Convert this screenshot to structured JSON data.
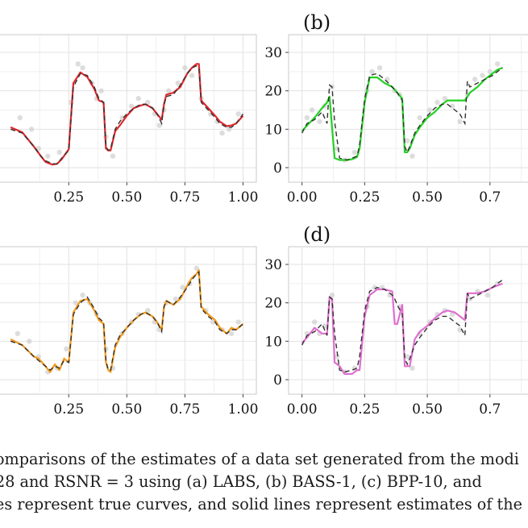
{
  "panels": [
    {
      "label": "",
      "line_color": "#e0282c",
      "x_ticks": [
        "0.25",
        "0.50",
        "0.75",
        "1.00"
      ],
      "y_ticks": []
    },
    {
      "label": "(b)",
      "line_color": "#22d122",
      "x_ticks": [
        "0.00",
        "0.25",
        "0.50",
        "0.7"
      ],
      "y_ticks": [
        "0",
        "10",
        "20",
        "30"
      ]
    },
    {
      "label": "",
      "line_color": "#f39a1c",
      "x_ticks": [
        "0.25",
        "0.50",
        "0.75",
        "1.00"
      ],
      "y_ticks": []
    },
    {
      "label": "(d)",
      "line_color": "#e06fcf",
      "x_ticks": [
        "0.00",
        "0.25",
        "0.50",
        "0.7"
      ],
      "y_ticks": [
        "0",
        "10",
        "20",
        "30"
      ]
    }
  ],
  "caption": {
    "line1": "omparisons of the estimates of a data set generated from the modi",
    "line2": "28 and RSNR = 3 using (a) LABS, (b) BASS-1, (c) BPP-10, and",
    "line3": "es represent true curves, and solid lines represent estimates of the"
  },
  "chart_data": [
    {
      "type": "line",
      "panel": "(a)",
      "xlim": [
        0,
        1
      ],
      "ylim": [
        0,
        30
      ],
      "x": [
        0.0,
        0.05,
        0.1,
        0.13,
        0.15,
        0.18,
        0.2,
        0.22,
        0.25,
        0.27,
        0.3,
        0.33,
        0.36,
        0.38,
        0.4,
        0.41,
        0.42,
        0.43,
        0.45,
        0.47,
        0.5,
        0.53,
        0.56,
        0.58,
        0.61,
        0.63,
        0.65,
        0.66,
        0.67,
        0.7,
        0.73,
        0.76,
        0.78,
        0.8,
        0.81,
        0.82,
        0.85,
        0.88,
        0.9,
        0.93,
        0.95,
        0.97,
        1.0
      ],
      "series": [
        {
          "values": [
            10.5,
            9.2,
            5.5,
            3.0,
            1.5,
            0.8,
            1.0,
            2.2,
            4.8,
            22.0,
            24.8,
            23.6,
            20.5,
            17.5,
            17.0,
            5.0,
            4.5,
            4.5,
            9.5,
            11.0,
            13.5,
            15.5,
            16.2,
            16.5,
            15.5,
            14.0,
            12.5,
            16.5,
            19.0,
            19.5,
            21.0,
            24.5,
            26.0,
            27.0,
            27.0,
            17.5,
            15.5,
            13.5,
            12.0,
            10.8,
            11.0,
            11.5,
            13.5
          ]
        },
        {
          "values": [
            10.0,
            9.0,
            5.5,
            3.0,
            1.8,
            1.0,
            1.0,
            2.5,
            4.5,
            21.0,
            24.5,
            24.0,
            21.0,
            18.0,
            17.0,
            5.5,
            4.5,
            5.0,
            10.0,
            12.0,
            14.0,
            15.5,
            16.5,
            16.5,
            15.5,
            14.0,
            11.5,
            16.5,
            18.5,
            19.0,
            21.5,
            24.5,
            26.0,
            26.5,
            26.0,
            17.0,
            15.0,
            13.0,
            11.5,
            10.5,
            10.5,
            11.5,
            14.0
          ]
        }
      ],
      "points": [
        [
          0.04,
          13
        ],
        [
          0.09,
          10
        ],
        [
          0.12,
          5
        ],
        [
          0.16,
          3
        ],
        [
          0.21,
          4
        ],
        [
          0.26,
          17
        ],
        [
          0.29,
          27
        ],
        [
          0.31,
          26
        ],
        [
          0.35,
          22
        ],
        [
          0.37,
          18
        ],
        [
          0.39,
          20
        ],
        [
          0.41,
          8
        ],
        [
          0.44,
          3
        ],
        [
          0.48,
          13
        ],
        [
          0.52,
          16
        ],
        [
          0.55,
          18
        ],
        [
          0.59,
          17
        ],
        [
          0.62,
          14
        ],
        [
          0.64,
          11
        ],
        [
          0.66,
          15
        ],
        [
          0.68,
          20
        ],
        [
          0.72,
          22
        ],
        [
          0.75,
          26
        ],
        [
          0.78,
          24
        ],
        [
          0.82,
          18
        ],
        [
          0.86,
          14
        ],
        [
          0.89,
          12
        ],
        [
          0.91,
          9
        ],
        [
          0.94,
          10
        ],
        [
          0.98,
          14
        ]
      ]
    },
    {
      "type": "line",
      "panel": "(b)",
      "xlim": [
        0,
        1
      ],
      "ylim": [
        0,
        30
      ],
      "x": [
        0.0,
        0.02,
        0.05,
        0.08,
        0.1,
        0.11,
        0.12,
        0.13,
        0.15,
        0.18,
        0.2,
        0.22,
        0.23,
        0.25,
        0.27,
        0.3,
        0.33,
        0.36,
        0.38,
        0.4,
        0.41,
        0.42,
        0.43,
        0.45,
        0.47,
        0.5,
        0.53,
        0.56,
        0.58,
        0.61,
        0.63,
        0.65,
        0.66,
        0.67,
        0.7,
        0.73,
        0.76,
        0.78,
        0.8
      ],
      "series": [
        {
          "values": [
            9.5,
            11.0,
            13.0,
            15.5,
            17.0,
            18.5,
            10.5,
            2.5,
            2.0,
            2.0,
            2.2,
            2.8,
            5.0,
            17.0,
            23.5,
            23.5,
            22.0,
            21.0,
            19.5,
            18.0,
            4.0,
            4.0,
            5.0,
            8.5,
            10.5,
            13.0,
            14.5,
            16.5,
            17.5,
            17.5,
            17.5,
            17.5,
            18.5,
            19.5,
            21.0,
            23.0,
            24.5,
            25.5,
            26.0
          ]
        },
        {
          "values": [
            9.0,
            11.5,
            12.5,
            14.5,
            11.5,
            21.5,
            21.0,
            12.0,
            2.5,
            2.0,
            2.5,
            3.0,
            6.0,
            18.0,
            24.0,
            24.5,
            23.0,
            21.0,
            19.5,
            17.5,
            5.5,
            4.0,
            5.5,
            9.0,
            11.0,
            13.5,
            15.5,
            16.5,
            16.5,
            15.0,
            14.0,
            11.5,
            22.5,
            21.0,
            22.0,
            23.0,
            24.0,
            25.0,
            26.0
          ]
        }
      ],
      "points": [
        [
          0.02,
          13
        ],
        [
          0.04,
          15
        ],
        [
          0.07,
          12
        ],
        [
          0.09,
          16
        ],
        [
          0.12,
          21
        ],
        [
          0.14,
          5
        ],
        [
          0.17,
          2
        ],
        [
          0.21,
          4
        ],
        [
          0.26,
          20
        ],
        [
          0.28,
          25
        ],
        [
          0.31,
          26
        ],
        [
          0.34,
          23
        ],
        [
          0.37,
          20
        ],
        [
          0.39,
          19
        ],
        [
          0.42,
          7
        ],
        [
          0.44,
          3
        ],
        [
          0.47,
          13
        ],
        [
          0.51,
          15
        ],
        [
          0.54,
          17
        ],
        [
          0.57,
          18
        ],
        [
          0.6,
          16
        ],
        [
          0.63,
          12
        ],
        [
          0.66,
          19
        ],
        [
          0.69,
          23
        ],
        [
          0.72,
          24
        ],
        [
          0.75,
          25
        ],
        [
          0.78,
          27
        ]
      ]
    },
    {
      "type": "line",
      "panel": "(c)",
      "xlim": [
        0,
        1
      ],
      "ylim": [
        0,
        30
      ],
      "x": [
        0.0,
        0.05,
        0.1,
        0.12,
        0.15,
        0.17,
        0.19,
        0.21,
        0.23,
        0.25,
        0.27,
        0.3,
        0.33,
        0.36,
        0.38,
        0.4,
        0.41,
        0.42,
        0.43,
        0.45,
        0.47,
        0.5,
        0.53,
        0.56,
        0.58,
        0.61,
        0.63,
        0.65,
        0.66,
        0.67,
        0.7,
        0.73,
        0.76,
        0.78,
        0.8,
        0.81,
        0.82,
        0.85,
        0.88,
        0.9,
        0.93,
        0.95,
        0.97,
        1.0
      ],
      "series": [
        {
          "values": [
            10.5,
            9.0,
            6.0,
            5.5,
            3.5,
            2.0,
            4.0,
            2.5,
            5.5,
            4.5,
            17.5,
            20.5,
            21.0,
            18.0,
            15.5,
            14.5,
            4.5,
            2.5,
            2.0,
            8.5,
            11.0,
            13.5,
            15.5,
            17.0,
            17.5,
            16.5,
            15.0,
            13.0,
            19.0,
            20.5,
            19.5,
            21.0,
            24.5,
            26.5,
            27.5,
            28.5,
            19.0,
            17.0,
            15.5,
            13.5,
            12.0,
            13.5,
            13.0,
            14.5
          ]
        },
        {
          "values": [
            10.0,
            9.0,
            6.0,
            5.0,
            3.5,
            2.5,
            3.5,
            3.0,
            5.0,
            4.5,
            17.0,
            20.0,
            21.5,
            18.5,
            16.0,
            15.0,
            5.0,
            2.5,
            2.5,
            9.0,
            11.5,
            13.5,
            15.5,
            17.0,
            17.5,
            16.5,
            15.0,
            12.5,
            19.0,
            20.5,
            19.5,
            21.5,
            24.0,
            26.0,
            27.5,
            28.0,
            18.5,
            16.5,
            15.0,
            13.0,
            12.0,
            13.0,
            13.0,
            14.5
          ]
        }
      ],
      "points": [
        [
          0.03,
          12
        ],
        [
          0.08,
          10
        ],
        [
          0.12,
          6
        ],
        [
          0.16,
          2
        ],
        [
          0.2,
          3
        ],
        [
          0.24,
          8
        ],
        [
          0.28,
          20
        ],
        [
          0.31,
          22
        ],
        [
          0.34,
          20
        ],
        [
          0.37,
          17
        ],
        [
          0.41,
          8
        ],
        [
          0.44,
          3
        ],
        [
          0.48,
          12
        ],
        [
          0.52,
          15
        ],
        [
          0.55,
          17
        ],
        [
          0.59,
          18
        ],
        [
          0.62,
          15
        ],
        [
          0.64,
          13
        ],
        [
          0.67,
          20
        ],
        [
          0.71,
          21
        ],
        [
          0.74,
          24
        ],
        [
          0.77,
          25
        ],
        [
          0.8,
          29
        ],
        [
          0.84,
          18
        ],
        [
          0.87,
          15
        ],
        [
          0.91,
          13
        ],
        [
          0.95,
          12
        ],
        [
          0.98,
          15
        ]
      ]
    },
    {
      "type": "line",
      "panel": "(d)",
      "xlim": [
        0,
        1
      ],
      "ylim": [
        0,
        30
      ],
      "x": [
        0.0,
        0.02,
        0.05,
        0.08,
        0.1,
        0.11,
        0.12,
        0.13,
        0.15,
        0.17,
        0.2,
        0.22,
        0.23,
        0.25,
        0.27,
        0.3,
        0.33,
        0.36,
        0.37,
        0.38,
        0.4,
        0.41,
        0.42,
        0.43,
        0.45,
        0.47,
        0.5,
        0.53,
        0.56,
        0.58,
        0.61,
        0.63,
        0.65,
        0.66,
        0.67,
        0.7,
        0.73,
        0.76,
        0.78,
        0.8
      ],
      "series": [
        {
          "values": [
            9.5,
            11.0,
            13.5,
            12.0,
            12.0,
            21.5,
            21.0,
            4.5,
            3.5,
            1.5,
            1.5,
            2.5,
            2.5,
            16.5,
            22.0,
            23.5,
            23.5,
            23.0,
            14.5,
            14.5,
            19.5,
            3.5,
            3.5,
            3.5,
            10.5,
            12.5,
            14.0,
            16.0,
            17.5,
            18.0,
            17.5,
            16.5,
            15.5,
            22.5,
            22.5,
            22.5,
            23.0,
            24.0,
            24.5,
            25.0
          ]
        },
        {
          "values": [
            9.0,
            11.5,
            12.5,
            14.5,
            11.5,
            21.5,
            21.0,
            12.0,
            2.5,
            2.0,
            2.5,
            3.0,
            6.0,
            18.0,
            23.0,
            24.0,
            23.5,
            22.0,
            21.0,
            19.5,
            17.0,
            5.5,
            4.0,
            5.5,
            9.0,
            11.0,
            13.5,
            15.5,
            16.5,
            16.5,
            15.0,
            14.0,
            11.5,
            22.5,
            21.0,
            22.0,
            23.0,
            24.0,
            25.0,
            26.0
          ]
        }
      ],
      "points": [
        [
          0.02,
          12
        ],
        [
          0.05,
          15
        ],
        [
          0.07,
          12
        ],
        [
          0.09,
          14
        ],
        [
          0.12,
          22
        ],
        [
          0.14,
          6
        ],
        [
          0.17,
          2
        ],
        [
          0.21,
          3
        ],
        [
          0.26,
          19
        ],
        [
          0.29,
          24
        ],
        [
          0.32,
          24
        ],
        [
          0.35,
          22
        ],
        [
          0.39,
          19
        ],
        [
          0.42,
          6
        ],
        [
          0.44,
          3
        ],
        [
          0.47,
          12
        ],
        [
          0.51,
          15
        ],
        [
          0.54,
          17
        ],
        [
          0.57,
          18
        ],
        [
          0.6,
          17
        ],
        [
          0.63,
          13
        ],
        [
          0.67,
          21
        ],
        [
          0.7,
          23
        ],
        [
          0.74,
          22
        ],
        [
          0.78,
          25
        ]
      ]
    }
  ]
}
